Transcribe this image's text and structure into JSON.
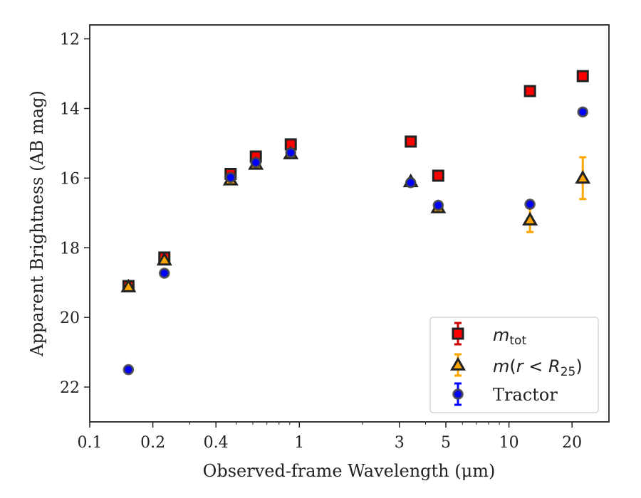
{
  "chart_data": {
    "type": "scatter",
    "xlabel": "Observed-frame Wavelength (μm)",
    "ylabel": "Apparent Brightness (AB mag)",
    "xscale": "log",
    "xlim": [
      0.1,
      30
    ],
    "ylim": [
      23,
      11.6
    ],
    "y_inverted": true,
    "x_tick_labels": [
      "0.1",
      "0.2",
      "0.4",
      "1",
      "3",
      "5",
      "10",
      "20"
    ],
    "x_tick_values": [
      0.1,
      0.2,
      0.4,
      1,
      3,
      5,
      10,
      20
    ],
    "y_tick_labels": [
      "12",
      "14",
      "16",
      "18",
      "20",
      "22"
    ],
    "y_tick_values": [
      12,
      14,
      16,
      18,
      20,
      22
    ],
    "grid": false,
    "legend_position": "bottom-right",
    "series": [
      {
        "key": "mtot",
        "marker": "square",
        "face_color": "#ff0000",
        "edge_color": "#222222",
        "err_color": "#cc0000",
        "x": [
          0.153,
          0.227,
          0.47,
          0.62,
          0.91,
          3.4,
          4.6,
          12.6,
          22.5
        ],
        "y": [
          19.1,
          18.28,
          15.88,
          15.38,
          15.03,
          14.95,
          15.93,
          13.5,
          13.07
        ],
        "err": [
          0.08,
          0.08,
          0.04,
          0.04,
          0.03,
          0.03,
          0.04,
          0.06,
          0.06
        ]
      },
      {
        "key": "mr25",
        "marker": "triangle",
        "face_color": "#ffa500",
        "edge_color": "#222222",
        "err_color": "#ffa500",
        "x": [
          0.153,
          0.227,
          0.47,
          0.62,
          0.91,
          3.4,
          4.6,
          12.6,
          22.5
        ],
        "y": [
          19.12,
          18.35,
          16.05,
          15.6,
          15.3,
          16.1,
          16.85,
          17.2,
          16.0
        ],
        "err": [
          0.06,
          0.06,
          0.04,
          0.04,
          0.03,
          0.05,
          0.06,
          0.35,
          0.6
        ]
      },
      {
        "key": "tractor",
        "name": "Tractor",
        "marker": "circle",
        "face_color": "#0000ff",
        "edge_color": "#444444",
        "err_color": "#0000ff",
        "x": [
          0.153,
          0.227,
          0.47,
          0.62,
          0.91,
          3.4,
          4.6,
          12.6,
          22.5
        ],
        "y": [
          21.5,
          18.73,
          15.98,
          15.55,
          15.27,
          16.13,
          16.78,
          16.75,
          14.1
        ],
        "err": [
          0.05,
          0.05,
          0.03,
          0.03,
          0.03,
          0.03,
          0.04,
          0.05,
          0.05
        ]
      }
    ]
  }
}
